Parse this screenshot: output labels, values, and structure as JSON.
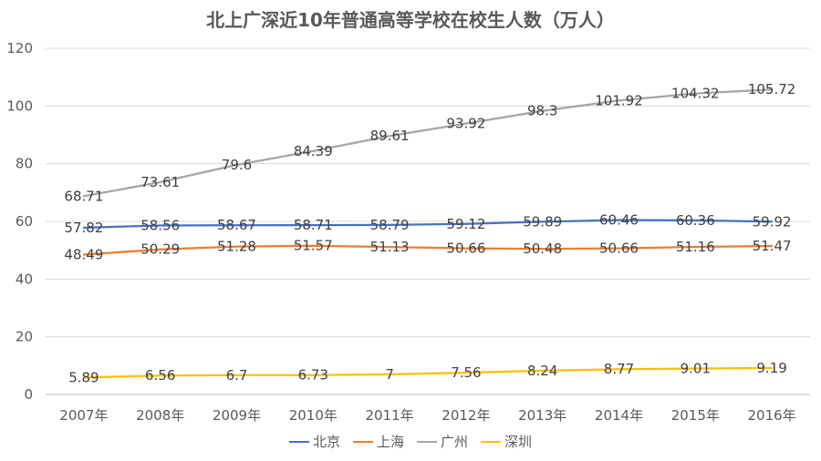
{
  "chart_data": {
    "type": "line",
    "title": "北上广深近10年普通高等学校在校生人数（万人）",
    "categories": [
      "2007年",
      "2008年",
      "2009年",
      "2010年",
      "2011年",
      "2012年",
      "2013年",
      "2014年",
      "2015年",
      "2016年"
    ],
    "ylim": [
      0,
      120
    ],
    "yticks": [
      0,
      20,
      40,
      60,
      80,
      100,
      120
    ],
    "grid": true,
    "legend_position": "bottom",
    "series": [
      {
        "name": "北京",
        "color": "#4472C4",
        "values": [
          57.82,
          58.56,
          58.67,
          58.71,
          58.79,
          59.12,
          59.89,
          60.46,
          60.36,
          59.92
        ],
        "labels": [
          "57.82",
          "58.56",
          "58.67",
          "58.71",
          "58.79",
          "59.12",
          "59.89",
          "60.46",
          "60.36",
          "59.92"
        ]
      },
      {
        "name": "上海",
        "color": "#ED7D31",
        "values": [
          48.49,
          50.29,
          51.28,
          51.57,
          51.13,
          50.66,
          50.48,
          50.66,
          51.16,
          51.47
        ],
        "labels": [
          "48.49",
          "50.29",
          "51.28",
          "51.57",
          "51.13",
          "50.66",
          "50.48",
          "50.66",
          "51.16",
          "51.47"
        ]
      },
      {
        "name": "广州",
        "color": "#A5A5A5",
        "values": [
          68.71,
          73.61,
          79.6,
          84.39,
          89.61,
          93.92,
          98.3,
          101.92,
          104.32,
          105.72
        ],
        "labels": [
          "68.71",
          "73.61",
          "79.6",
          "84.39",
          "89.61",
          "93.92",
          "98.3",
          "101.92",
          "104.32",
          "105.72"
        ]
      },
      {
        "name": "深圳",
        "color": "#FFC000",
        "values": [
          5.89,
          6.56,
          6.7,
          6.73,
          7,
          7.56,
          8.24,
          8.77,
          9.01,
          9.19
        ],
        "labels": [
          "5.89",
          "6.56",
          "6.7",
          "6.73",
          "7",
          "7.56",
          "8.24",
          "8.77",
          "9.01",
          "9.19"
        ]
      }
    ]
  }
}
